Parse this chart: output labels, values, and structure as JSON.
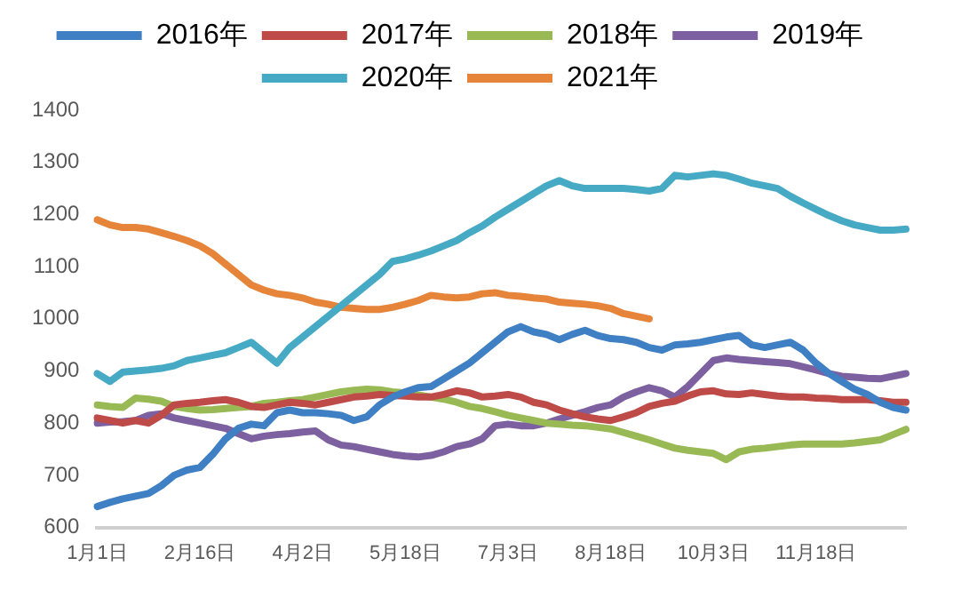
{
  "chart_data": {
    "type": "line",
    "categories": [
      "1月1日",
      null,
      null,
      null,
      null,
      null,
      null,
      null,
      "2月16日",
      null,
      null,
      null,
      null,
      null,
      null,
      null,
      "4月2日",
      null,
      null,
      null,
      null,
      null,
      null,
      null,
      "5月18日",
      null,
      null,
      null,
      null,
      null,
      null,
      null,
      "7月3日",
      null,
      null,
      null,
      null,
      null,
      null,
      null,
      "8月18日",
      null,
      null,
      null,
      null,
      null,
      null,
      null,
      "10月3日",
      null,
      null,
      null,
      null,
      null,
      null,
      null,
      "11月18日",
      null,
      null,
      null,
      null,
      null,
      null,
      null
    ],
    "series": [
      {
        "name": "2016年",
        "color": "#3f7fc4",
        "values": [
          640,
          648,
          655,
          660,
          665,
          680,
          700,
          710,
          715,
          740,
          770,
          790,
          798,
          795,
          820,
          825,
          820,
          820,
          818,
          815,
          805,
          812,
          835,
          850,
          860,
          868,
          870,
          885,
          900,
          915,
          935,
          955,
          975,
          985,
          975,
          970,
          960,
          970,
          978,
          968,
          962,
          960,
          955,
          945,
          940,
          950,
          952,
          955,
          960,
          965,
          968,
          950,
          945,
          950,
          955,
          940,
          915,
          895,
          880,
          865,
          855,
          840,
          830,
          825
        ]
      },
      {
        "name": "2017年",
        "color": "#be4b48",
        "values": [
          810,
          805,
          800,
          805,
          800,
          815,
          835,
          838,
          840,
          843,
          845,
          840,
          832,
          830,
          835,
          840,
          838,
          835,
          840,
          845,
          850,
          852,
          855,
          853,
          852,
          850,
          850,
          855,
          862,
          858,
          850,
          852,
          855,
          850,
          840,
          835,
          825,
          818,
          812,
          808,
          805,
          812,
          820,
          832,
          838,
          842,
          852,
          860,
          862,
          856,
          855,
          858,
          855,
          852,
          850,
          850,
          848,
          847,
          845,
          845,
          845,
          843,
          840,
          840
        ]
      },
      {
        "name": "2018年",
        "color": "#98b954",
        "values": [
          835,
          832,
          830,
          848,
          846,
          842,
          832,
          828,
          825,
          826,
          828,
          830,
          832,
          838,
          840,
          843,
          845,
          850,
          855,
          860,
          863,
          865,
          864,
          860,
          858,
          854,
          850,
          846,
          840,
          832,
          828,
          822,
          815,
          810,
          805,
          800,
          798,
          796,
          795,
          792,
          789,
          782,
          775,
          768,
          760,
          752,
          748,
          745,
          742,
          730,
          745,
          750,
          752,
          755,
          758,
          760,
          760,
          760,
          760,
          762,
          765,
          768,
          778,
          788
        ]
      },
      {
        "name": "2019年",
        "color": "#7d60a0",
        "values": [
          800,
          802,
          803,
          805,
          815,
          818,
          810,
          805,
          800,
          795,
          790,
          780,
          770,
          775,
          778,
          780,
          783,
          785,
          768,
          758,
          755,
          750,
          745,
          740,
          737,
          735,
          738,
          745,
          755,
          760,
          770,
          795,
          798,
          795,
          795,
          800,
          808,
          815,
          822,
          830,
          835,
          850,
          860,
          868,
          862,
          850,
          870,
          895,
          920,
          925,
          922,
          920,
          918,
          916,
          914,
          908,
          902,
          895,
          890,
          888,
          886,
          885,
          890,
          895
        ]
      },
      {
        "name": "2020年",
        "color": "#46aac5",
        "values": [
          895,
          880,
          898,
          900,
          902,
          905,
          910,
          920,
          925,
          930,
          935,
          945,
          955,
          935,
          915,
          945,
          965,
          985,
          1005,
          1025,
          1045,
          1065,
          1085,
          1110,
          1115,
          1122,
          1130,
          1140,
          1150,
          1165,
          1178,
          1195,
          1210,
          1225,
          1240,
          1255,
          1265,
          1255,
          1250,
          1250,
          1250,
          1250,
          1248,
          1245,
          1250,
          1275,
          1272,
          1275,
          1278,
          1275,
          1268,
          1260,
          1255,
          1250,
          1235,
          1222,
          1210,
          1198,
          1188,
          1180,
          1175,
          1170,
          1170,
          1172
        ]
      },
      {
        "name": "2021年",
        "color": "#e6843a",
        "values": [
          1190,
          1180,
          1175,
          1175,
          1172,
          1165,
          1158,
          1150,
          1140,
          1125,
          1105,
          1085,
          1065,
          1055,
          1048,
          1045,
          1040,
          1032,
          1028,
          1022,
          1020,
          1018,
          1018,
          1022,
          1028,
          1035,
          1045,
          1042,
          1040,
          1042,
          1048,
          1050,
          1045,
          1043,
          1040,
          1038,
          1032,
          1030,
          1028,
          1025,
          1020,
          1010,
          1005,
          1000,
          null,
          null,
          null,
          null,
          null,
          null,
          null,
          null,
          null,
          null,
          null,
          null,
          null,
          null,
          null,
          null,
          null,
          null,
          null,
          null
        ]
      }
    ],
    "ylim": [
      600,
      1400
    ],
    "yticks": [
      600,
      700,
      800,
      900,
      1000,
      1100,
      1200,
      1300,
      1400
    ],
    "grid": false,
    "legend": "top",
    "marker": "none",
    "line_style": "solid"
  }
}
